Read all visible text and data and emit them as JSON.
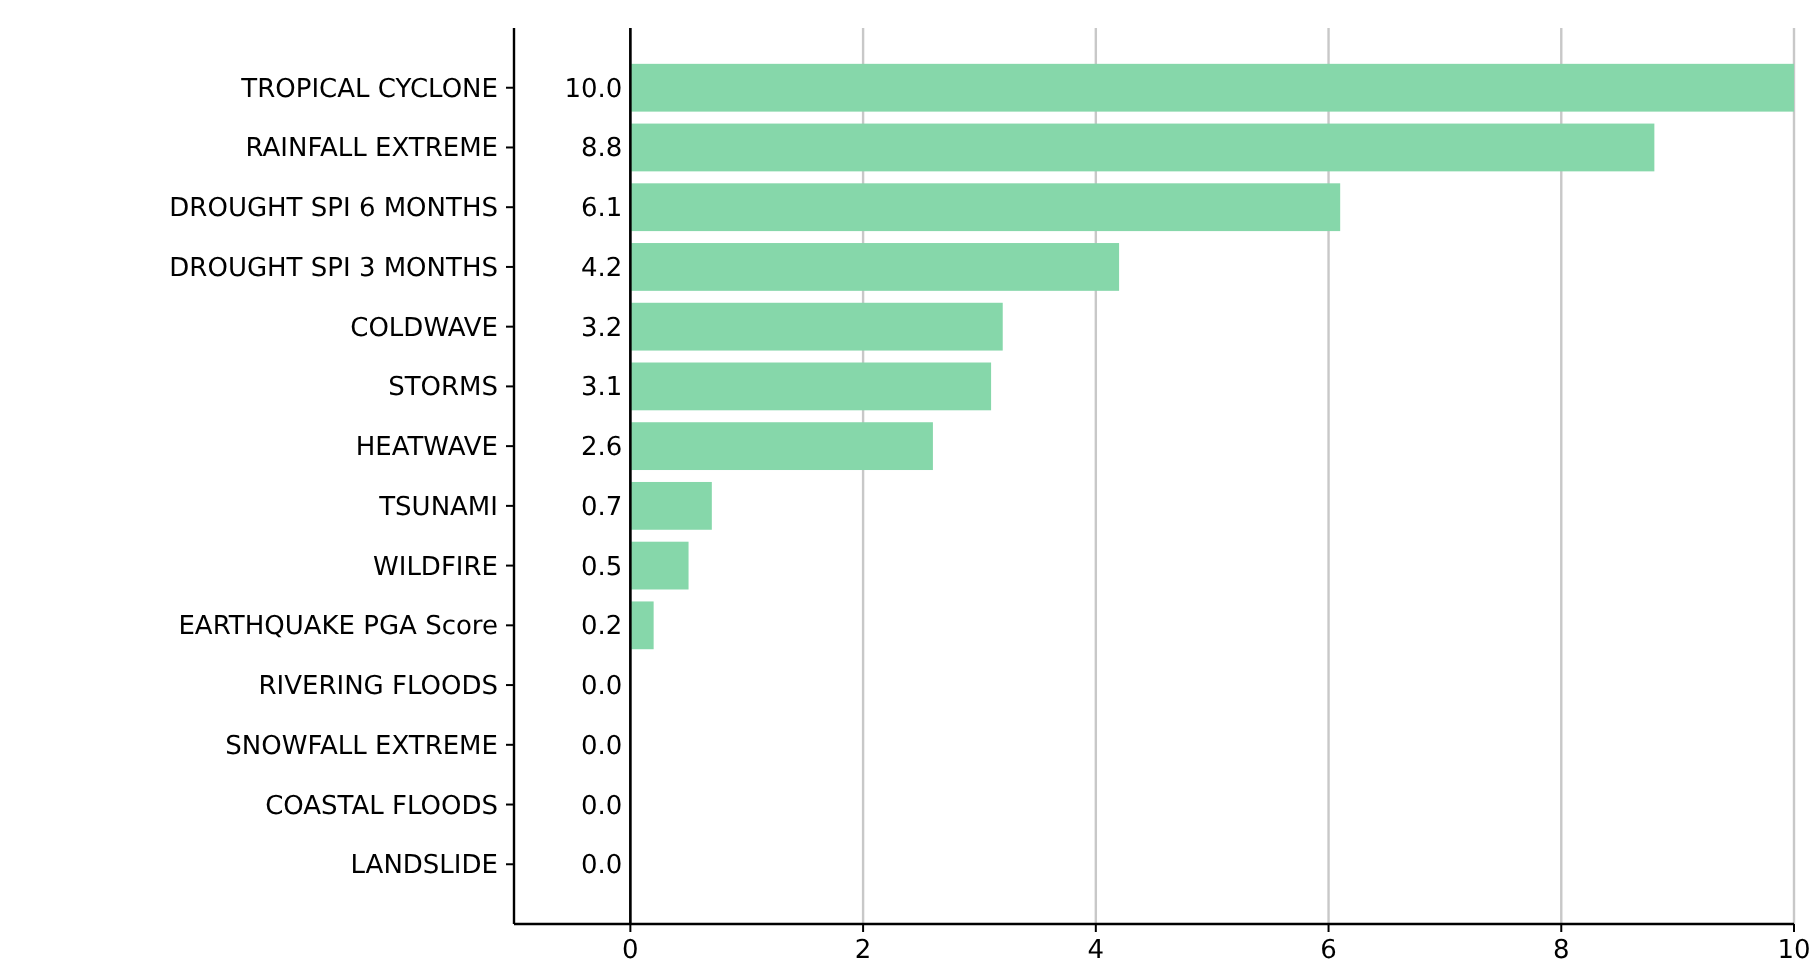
{
  "chart_data": {
    "type": "bar",
    "orientation": "horizontal",
    "categories": [
      "TROPICAL CYCLONE",
      "RAINFALL EXTREME",
      "DROUGHT SPI 6 MONTHS",
      "DROUGHT SPI 3 MONTHS",
      "COLDWAVE",
      "STORMS",
      "HEATWAVE",
      "TSUNAMI",
      "WILDFIRE",
      "EARTHQUAKE PGA Score",
      "RIVERING FLOODS",
      "SNOWFALL EXTREME",
      "COASTAL FLOODS",
      "LANDSLIDE"
    ],
    "values": [
      10.0,
      8.8,
      6.1,
      4.2,
      3.2,
      3.1,
      2.6,
      0.7,
      0.5,
      0.2,
      0.0,
      0.0,
      0.0,
      0.0
    ],
    "value_labels": [
      "10.0",
      "8.8",
      "6.1",
      "4.2",
      "3.2",
      "3.1",
      "2.6",
      "0.7",
      "0.5",
      "0.2",
      "0.0",
      "0.0",
      "0.0",
      "0.0"
    ],
    "color": "#86d7aa",
    "xlim": [
      -1,
      10
    ],
    "xticks": [
      0,
      2,
      4,
      6,
      8,
      10
    ],
    "grid": "x",
    "ref_lines": [
      {
        "axis": "x",
        "value": 0,
        "color": "#000000"
      }
    ]
  }
}
